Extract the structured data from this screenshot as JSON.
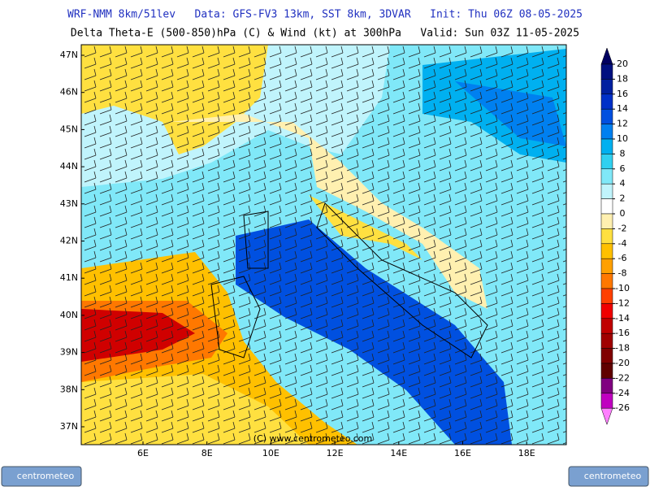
{
  "header": {
    "line1": "WRF-NMM 8km/51lev   Data: GFS-FV3 13km, SST 8km, 3DVAR   Init: Thu 06Z 08-05-2025",
    "line2": "Delta Theta-E (500-850)hPa (C) & Wind (kt) at 300hPa   Valid: Sun 03Z 11-05-2025"
  },
  "map": {
    "lat_labels": [
      "47N",
      "46N",
      "45N",
      "44N",
      "43N",
      "42N",
      "41N",
      "40N",
      "39N",
      "38N",
      "37N"
    ],
    "lon_labels": [
      "6E",
      "8E",
      "10E",
      "12E",
      "14E",
      "16E",
      "18E"
    ],
    "copyright": "(C) www.centrometeo.com"
  },
  "colorbar": {
    "levels": [
      20,
      18,
      16,
      14,
      12,
      10,
      8,
      6,
      4,
      2,
      0,
      -2,
      -4,
      -6,
      -8,
      -10,
      -12,
      -14,
      -16,
      -18,
      -20,
      -22,
      -24,
      -26
    ],
    "colors": [
      "#000060",
      "#001080",
      "#0020a0",
      "#0030c8",
      "#0050e0",
      "#0080f0",
      "#00b0f0",
      "#30d0f0",
      "#80e8f8",
      "#c0f4fc",
      "#ffffff",
      "#fff0b0",
      "#ffe040",
      "#ffc000",
      "#ffa000",
      "#ff7800",
      "#ff4000",
      "#f00000",
      "#c00000",
      "#a00000",
      "#800000",
      "#600000",
      "#800080",
      "#c000c0",
      "#ff80ff"
    ]
  },
  "logos": [
    "centrometeo",
    "centrometeo"
  ]
}
